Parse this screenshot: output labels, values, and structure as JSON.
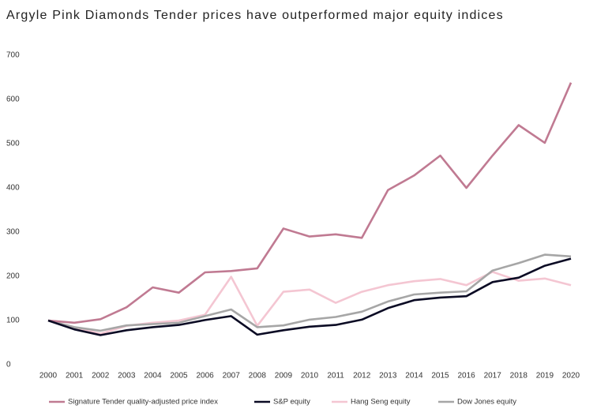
{
  "chart_data": {
    "type": "line",
    "title": "Argyle Pink Diamonds Tender prices have outperformed major equity indices",
    "categories": [
      "2000",
      "2001",
      "2002",
      "2003",
      "2004",
      "2005",
      "2006",
      "2007",
      "2008",
      "2009",
      "2010",
      "2011",
      "2012",
      "2013",
      "2014",
      "2015",
      "2016",
      "2017",
      "2018",
      "2019",
      "2020"
    ],
    "series": [
      {
        "name": "Signature Tender quality-adjusted price index",
        "color": "#c07a92",
        "values": [
          100,
          95,
          103,
          130,
          175,
          163,
          209,
          212,
          218,
          308,
          290,
          295,
          287,
          395,
          428,
          473,
          400,
          473,
          542,
          502,
          638
        ]
      },
      {
        "name": "S&P equity",
        "color": "#0b0b24",
        "values": [
          100,
          80,
          67,
          78,
          85,
          90,
          101,
          110,
          68,
          78,
          86,
          90,
          102,
          128,
          146,
          152,
          155,
          187,
          197,
          224,
          240
        ]
      },
      {
        "name": "Hang Seng equity",
        "color": "#f4c6d2",
        "values": [
          100,
          85,
          70,
          88,
          95,
          100,
          113,
          199,
          88,
          165,
          170,
          140,
          165,
          180,
          189,
          194,
          180,
          210,
          190,
          195,
          180
        ]
      },
      {
        "name": "Dow Jones equity",
        "color": "#a6a6a6",
        "values": [
          100,
          85,
          77,
          89,
          92,
          95,
          110,
          125,
          85,
          89,
          102,
          108,
          120,
          143,
          159,
          163,
          166,
          213,
          230,
          249,
          245
        ]
      }
    ],
    "ylim": [
      0,
      700
    ],
    "yticks": [
      0,
      100,
      200,
      300,
      400,
      500,
      600,
      700
    ],
    "grid": false
  }
}
